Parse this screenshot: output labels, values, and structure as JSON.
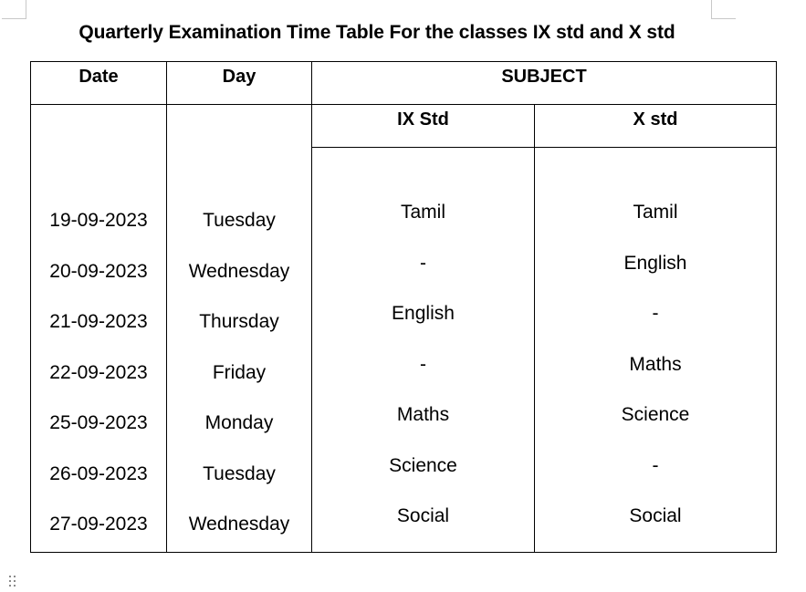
{
  "document": {
    "title": "Quarterly Examination Time Table For the classes IX std and X std"
  },
  "table": {
    "headers": {
      "date": "Date",
      "day": "Day",
      "subject": "SUBJECT",
      "ix_std": "IX Std",
      "x_std": "X std"
    },
    "rows": [
      {
        "date": "19-09-2023",
        "day": "Tuesday",
        "ix": "Tamil",
        "x": "Tamil"
      },
      {
        "date": "20-09-2023",
        "day": "Wednesday",
        "ix": "-",
        "x": "English"
      },
      {
        "date": "21-09-2023",
        "day": "Thursday",
        "ix": "English",
        "x": "-"
      },
      {
        "date": "22-09-2023",
        "day": "Friday",
        "ix": "-",
        "x": "Maths"
      },
      {
        "date": "25-09-2023",
        "day": "Monday",
        "ix": "Maths",
        "x": "Science"
      },
      {
        "date": "26-09-2023",
        "day": "Tuesday",
        "ix": "Science",
        "x": "-"
      },
      {
        "date": "27-09-2023",
        "day": "Wednesday",
        "ix": "Social",
        "x": "Social"
      }
    ]
  }
}
